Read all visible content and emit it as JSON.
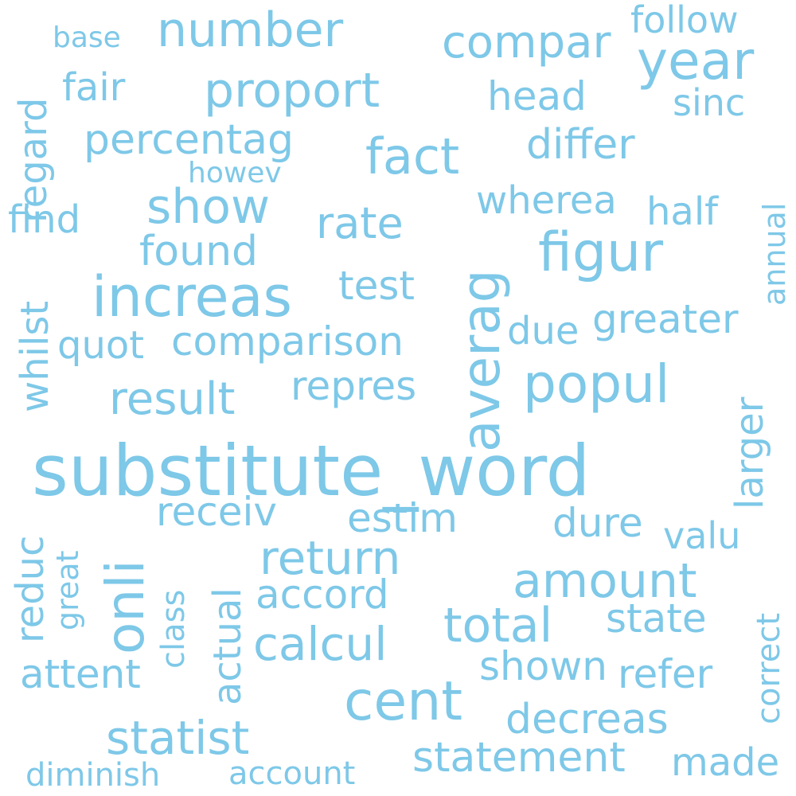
{
  "color": "#7ec8e8",
  "words": [
    "substitute_word",
    "increas",
    "cent",
    "year",
    "figur",
    "popul",
    "averag",
    "number",
    "proport",
    "fact",
    "show",
    "result",
    "onli",
    "return",
    "amount",
    "total",
    "compar",
    "statist",
    "comparison",
    "rate",
    "calcul",
    "statement",
    "decreas",
    "found",
    "percentag",
    "differ",
    "state",
    "accord",
    "attent",
    "repres",
    "test",
    "estim",
    "receiv",
    "actual",
    "dure",
    "greater",
    "refer",
    "shown",
    "made",
    "head",
    "fair",
    "find",
    "quot",
    "follow",
    "sinc",
    "half",
    "wherea",
    "due",
    "reduc",
    "whilst",
    "regard",
    "larger",
    "valu",
    "correct",
    "annual",
    "base",
    "howev",
    "diminish",
    "account",
    "class",
    "great"
  ]
}
